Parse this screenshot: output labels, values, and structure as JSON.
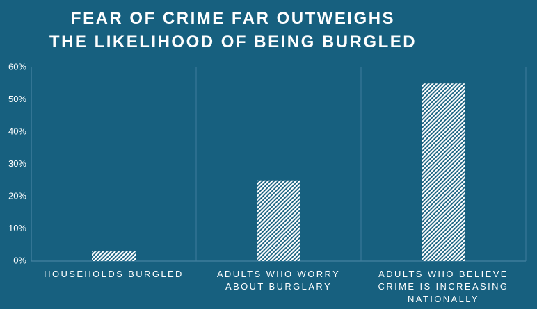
{
  "chart_data": {
    "type": "bar",
    "title": "FEAR OF CRIME FAR OUTWEIGHS THE LIKELIHOOD OF BEING BURGLED",
    "categories": [
      "HOUSEHOLDS BURGLED",
      "ADULTS WHO WORRY ABOUT BURGLARY",
      "ADULTS WHO BELIEVE CRIME IS INCREASING NATIONALLY"
    ],
    "values": [
      3,
      25,
      55
    ],
    "color": "#ffffff",
    "ylim": [
      0,
      60
    ],
    "yticks": [
      {
        "value": 0,
        "label": "0%"
      },
      {
        "value": 10,
        "label": "10%"
      },
      {
        "value": 20,
        "label": "20%"
      },
      {
        "value": 30,
        "label": "30%"
      },
      {
        "value": 40,
        "label": "40%"
      },
      {
        "value": 50,
        "label": "50%"
      },
      {
        "value": 60,
        "label": "60%"
      }
    ]
  }
}
